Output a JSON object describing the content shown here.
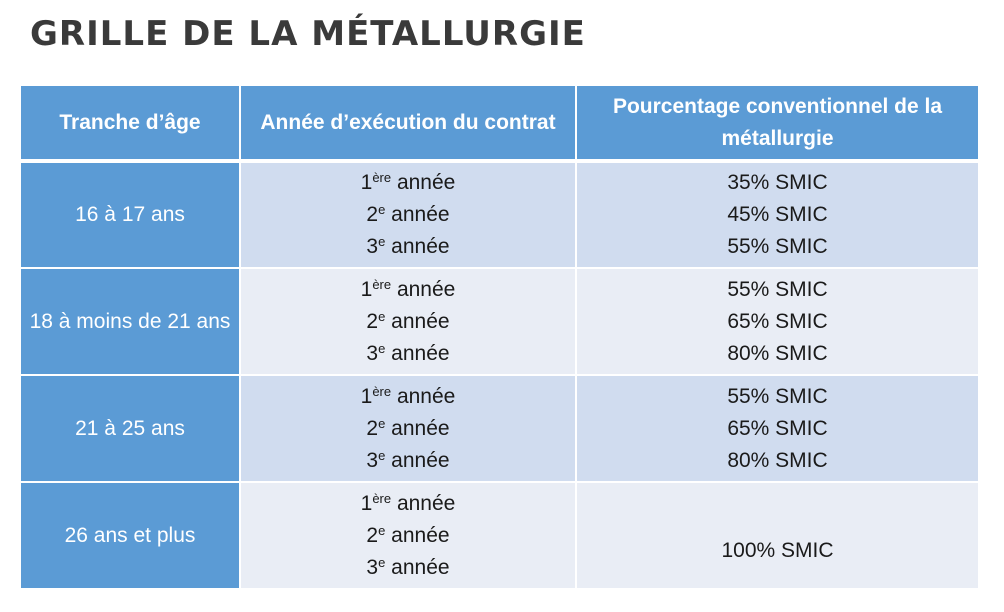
{
  "title": "GRILLE DE LA MÉTALLURGIE",
  "table": {
    "headers": [
      "Tranche d’âge",
      "Année d’exécution du contrat",
      "Pourcentage conventionnel de la métallurgie"
    ],
    "year_labels": [
      {
        "num": "1",
        "sup": "ère",
        "word": "année"
      },
      {
        "num": "2",
        "sup": "e",
        "word": "année"
      },
      {
        "num": "3",
        "sup": "e",
        "word": "année"
      }
    ],
    "rows": [
      {
        "age": "16 à 17 ans",
        "percentages": [
          "35% SMIC",
          "45% SMIC",
          "55% SMIC"
        ]
      },
      {
        "age": "18 à moins de 21 ans",
        "percentages": [
          "55% SMIC",
          "65% SMIC",
          "80% SMIC"
        ]
      },
      {
        "age": "21 à 25 ans",
        "percentages": [
          "55% SMIC",
          "65% SMIC",
          "80% SMIC"
        ]
      },
      {
        "age": "26 ans et plus",
        "percentages": [
          "100% SMIC"
        ]
      }
    ]
  },
  "colors": {
    "header_bg": "#5b9bd5",
    "row_odd_bg": "#d0dcef",
    "row_even_bg": "#e9edf5",
    "title_color": "#3a3a3a"
  }
}
